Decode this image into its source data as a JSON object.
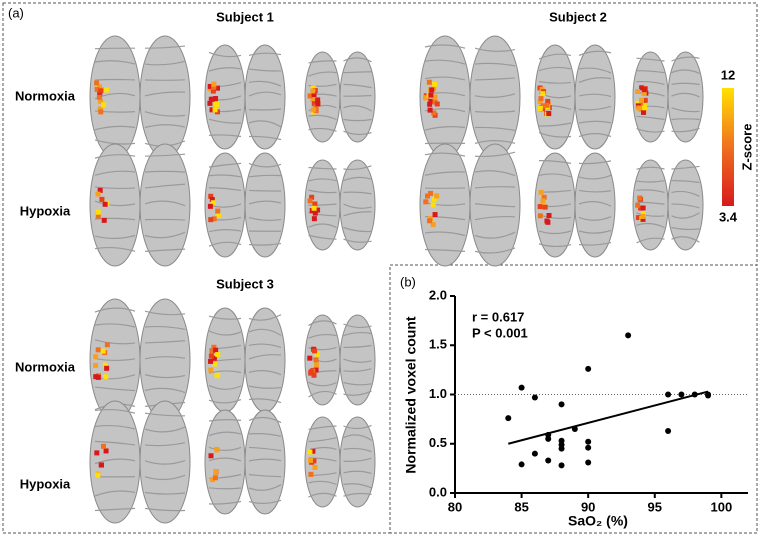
{
  "panel_a": {
    "label": "(a)",
    "subjects": [
      "Subject 1",
      "Subject 2",
      "Subject 3"
    ],
    "top_rows": [
      "Normoxia",
      "Hypoxia"
    ],
    "bottom_rows": [
      "Normoxia",
      "Hypoxia"
    ],
    "colorbar": {
      "title": "Z-score",
      "range": [
        3.4,
        12
      ]
    }
  },
  "chart_data": {
    "type": "scatter",
    "panel_label": "(b)",
    "x_label": "SaO₂ (%)",
    "y_label": "Normalized voxel count",
    "annotations": [
      "r = 0.617",
      "P < 0.001"
    ],
    "x": [
      84,
      85,
      86,
      85,
      86,
      87,
      87,
      87,
      88,
      88,
      88,
      88,
      88,
      89,
      90,
      90,
      90,
      90,
      93,
      96,
      96,
      97,
      98,
      99,
      99
    ],
    "values": [
      0.76,
      1.07,
      0.97,
      0.29,
      0.4,
      0.59,
      0.55,
      0.33,
      0.9,
      0.53,
      0.49,
      0.45,
      0.28,
      0.65,
      1.26,
      0.52,
      0.46,
      0.31,
      1.6,
      1.0,
      0.63,
      1.0,
      1.0,
      1.0,
      0.99
    ],
    "color": "#000000",
    "trendline": {
      "x": [
        84,
        99
      ],
      "values": [
        0.5,
        1.03
      ]
    },
    "reference_line": 1.0,
    "xlim": [
      80,
      102
    ],
    "xticks": [
      80,
      85,
      90,
      95,
      100
    ],
    "ylim": [
      0,
      2.0
    ],
    "yticks": [
      {
        "value": 0,
        "label": "0.0"
      },
      0.5,
      {
        "value": 1.0,
        "label": "1.0"
      },
      1.5,
      {
        "value": 2.0,
        "label": "2.0"
      }
    ]
  }
}
